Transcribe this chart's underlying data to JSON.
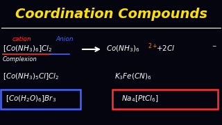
{
  "title": "Coordination Compounds",
  "title_color": "#FFE000",
  "title_fontsize": 14,
  "bg_color": "#050510",
  "text_color": "#FFFFFF",
  "red_color": "#FF3333",
  "blue_color": "#4466FF",
  "orange_color": "#FF8800",
  "label_cation": "cation",
  "label_anion": "Anion",
  "complexion_label": "Complexion"
}
